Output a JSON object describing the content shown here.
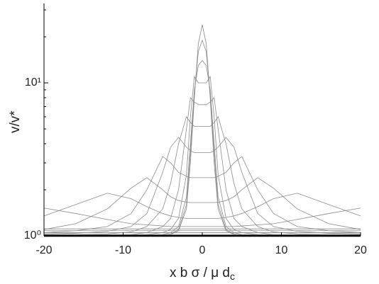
{
  "chart_data": {
    "type": "line",
    "xlabel": "x b σ / μ d",
    "xlabel_sub": "c",
    "ylabel": "v/v*",
    "ylog": true,
    "xlim": [
      -20,
      20
    ],
    "ylim": [
      1,
      33
    ],
    "xticks": [
      -20,
      -10,
      0,
      10,
      20
    ],
    "yticks": [
      {
        "value": 1,
        "label": "10⁰"
      },
      {
        "value": 10,
        "label": "10¹"
      }
    ],
    "yminorticks": [
      2,
      3,
      4,
      5,
      6,
      7,
      8,
      9,
      20,
      30
    ],
    "color": "#8a8a8a",
    "reference_lines": [
      1.02,
      1.05,
      1.08,
      1.11
    ],
    "x": [
      -20,
      -16,
      -12,
      -9,
      -7,
      -5,
      -4,
      -3,
      -2,
      -1.5,
      -1,
      -0.5,
      0,
      0.5,
      1,
      1.5,
      2,
      3,
      4,
      5,
      7,
      9,
      12,
      16,
      20
    ],
    "series": [
      {
        "values": [
          1.52,
          1.4,
          1.28,
          1.2,
          1.18,
          1.16,
          1.15,
          1.15,
          1.15,
          1.15,
          1.15,
          1.15,
          1.15,
          1.15,
          1.15,
          1.15,
          1.15,
          1.15,
          1.15,
          1.16,
          1.18,
          1.2,
          1.28,
          1.4,
          1.52
        ]
      },
      {
        "values": [
          1.35,
          1.6,
          1.9,
          1.75,
          1.55,
          1.4,
          1.35,
          1.32,
          1.3,
          1.3,
          1.3,
          1.3,
          1.3,
          1.3,
          1.3,
          1.3,
          1.3,
          1.32,
          1.35,
          1.4,
          1.55,
          1.75,
          1.9,
          1.6,
          1.35
        ]
      },
      {
        "values": [
          1.1,
          1.2,
          1.5,
          2.05,
          2.4,
          2.0,
          1.8,
          1.7,
          1.66,
          1.65,
          1.65,
          1.65,
          1.65,
          1.65,
          1.65,
          1.65,
          1.66,
          1.7,
          1.8,
          2.0,
          2.4,
          2.05,
          1.5,
          1.2,
          1.1
        ]
      },
      {
        "values": [
          1.05,
          1.08,
          1.15,
          1.4,
          2.0,
          3.3,
          3.0,
          2.6,
          2.45,
          2.4,
          2.4,
          2.4,
          2.4,
          2.4,
          2.4,
          2.4,
          2.45,
          2.6,
          3.0,
          3.3,
          2.0,
          1.4,
          1.15,
          1.08,
          1.05
        ]
      },
      {
        "values": [
          1.03,
          1.04,
          1.07,
          1.15,
          1.4,
          2.6,
          3.8,
          4.4,
          3.8,
          3.6,
          3.5,
          3.5,
          3.5,
          3.5,
          3.5,
          3.6,
          3.8,
          4.4,
          3.8,
          2.6,
          1.4,
          1.15,
          1.07,
          1.04,
          1.03
        ]
      },
      {
        "values": [
          1.02,
          1.02,
          1.03,
          1.06,
          1.15,
          1.5,
          2.2,
          4.0,
          6.0,
          5.5,
          5.2,
          5.2,
          5.2,
          5.2,
          5.2,
          5.5,
          6.0,
          4.0,
          2.2,
          1.5,
          1.15,
          1.06,
          1.03,
          1.02,
          1.02
        ]
      },
      {
        "values": [
          1.01,
          1.01,
          1.01,
          1.02,
          1.05,
          1.15,
          1.3,
          2.0,
          5.0,
          8.0,
          7.5,
          7.2,
          7.2,
          7.2,
          7.5,
          8.0,
          5.0,
          2.0,
          1.3,
          1.15,
          1.05,
          1.02,
          1.01,
          1.01,
          1.01
        ]
      },
      {
        "values": [
          1.01,
          1.01,
          1.01,
          1.01,
          1.02,
          1.05,
          1.1,
          1.3,
          2.5,
          6,
          11,
          10,
          10,
          10,
          11,
          6,
          2.5,
          1.3,
          1.1,
          1.05,
          1.02,
          1.01,
          1.01,
          1.01,
          1.01
        ]
      },
      {
        "values": [
          1.01,
          1.01,
          1.01,
          1.01,
          1.01,
          1.02,
          1.05,
          1.15,
          1.8,
          4,
          9,
          13,
          14,
          13,
          9,
          4,
          1.8,
          1.15,
          1.05,
          1.02,
          1.01,
          1.01,
          1.01,
          1.01,
          1.01
        ]
      },
      {
        "values": [
          1.01,
          1.01,
          1.01,
          1.01,
          1.01,
          1.01,
          1.03,
          1.1,
          1.6,
          3.5,
          8.5,
          16,
          19,
          16,
          8.5,
          3.5,
          1.6,
          1.1,
          1.03,
          1.01,
          1.01,
          1.01,
          1.01,
          1.01,
          1.01
        ]
      },
      {
        "values": [
          1.01,
          1.01,
          1.01,
          1.01,
          1.01,
          1.01,
          1.02,
          1.08,
          1.5,
          3,
          8,
          18,
          24,
          18,
          8,
          3,
          1.5,
          1.08,
          1.02,
          1.01,
          1.01,
          1.01,
          1.01,
          1.01,
          1.01
        ]
      }
    ]
  }
}
